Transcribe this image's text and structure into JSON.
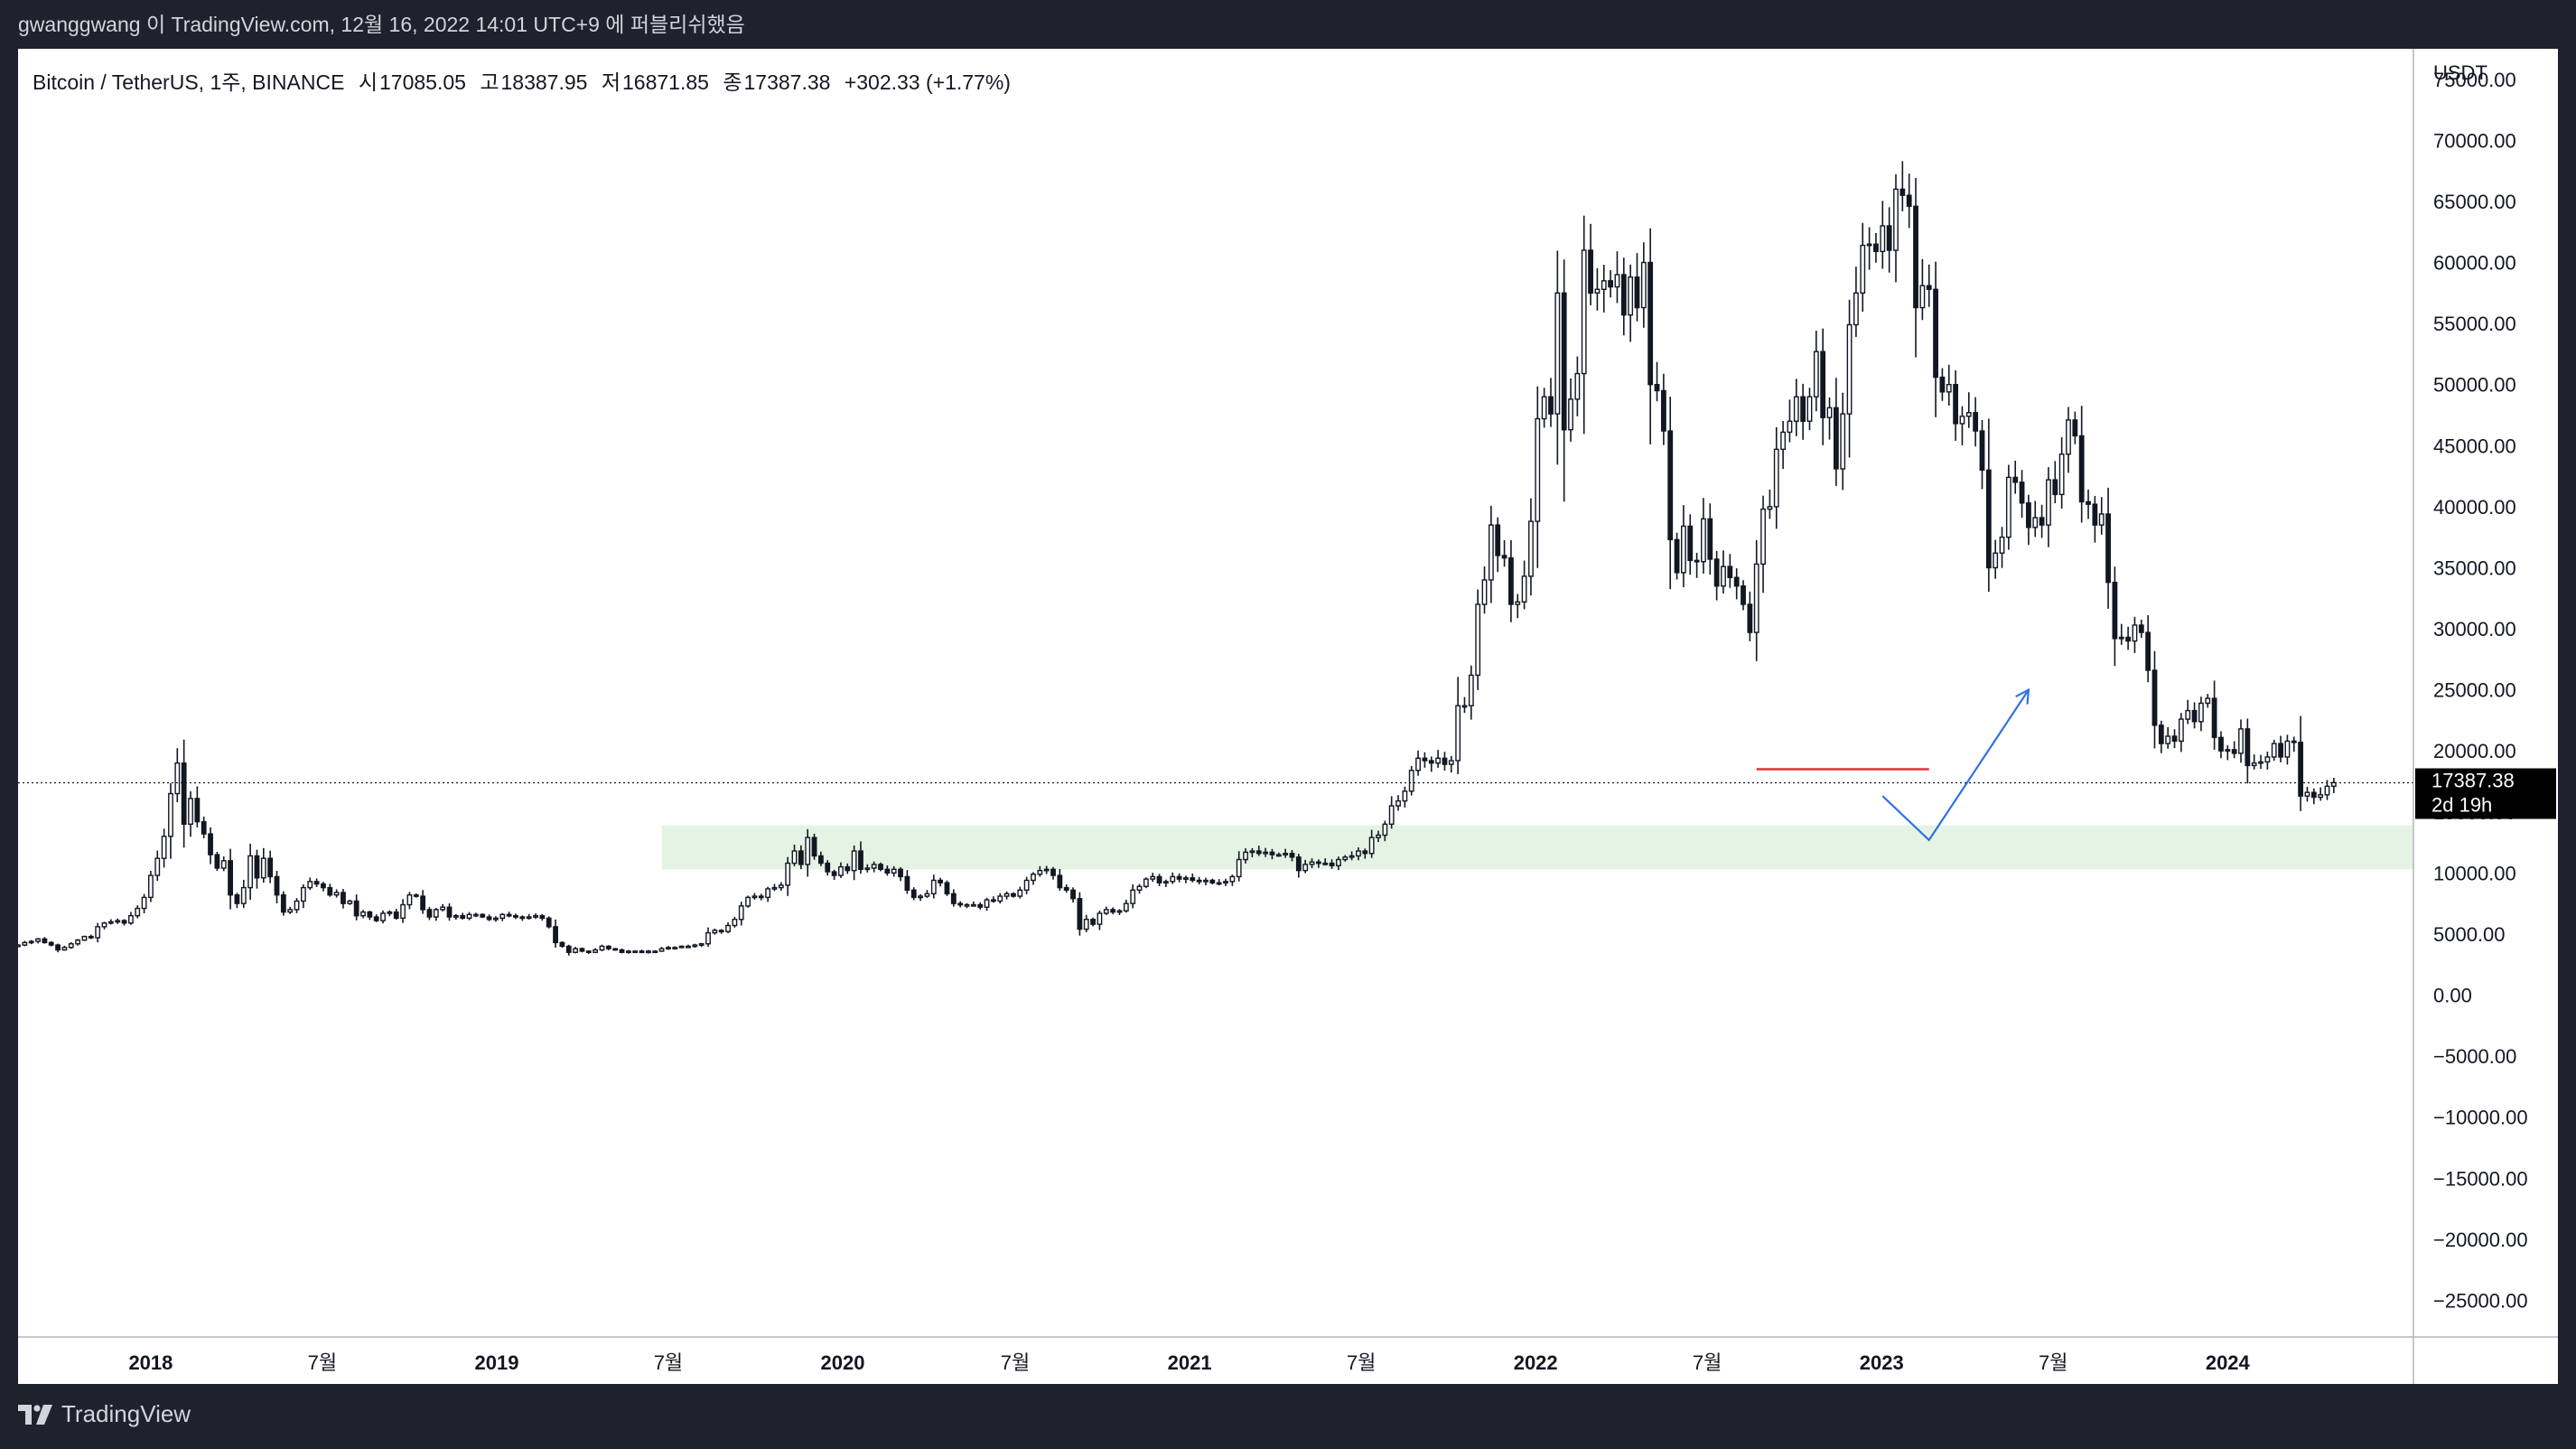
{
  "publisher_line": "gwanggwang 이 TradingView.com, 12월 16, 2022 14:01 UTC+9 에 퍼블리쉬했음",
  "legend": {
    "symbol": "Bitcoin / TetherUS, 1주, BINANCE",
    "open_label": "시",
    "open": "17085.05",
    "high_label": "고",
    "high": "18387.95",
    "low_label": "저",
    "low": "16871.85",
    "close_label": "종",
    "close": "17387.38",
    "change": "+302.33 (+1.77%)"
  },
  "price_axis": {
    "currency": "USDT",
    "last_price": "17387.38",
    "countdown": "2d 19h"
  },
  "brand": "TradingView",
  "colors": {
    "up": "#131722",
    "down": "#131722",
    "background": "#ffffff",
    "support_zone": "#e4f3e4",
    "resistance_line": "#e0323c",
    "projection": "#2f73e0"
  },
  "chart_data": {
    "type": "candlestick",
    "title": "Bitcoin / TetherUS, 1주, BINANCE",
    "ylabel": "USDT",
    "ylim": [
      -28000,
      77500
    ],
    "y_ticks": [
      75000,
      70000,
      65000,
      60000,
      55000,
      50000,
      45000,
      40000,
      35000,
      30000,
      25000,
      20000,
      15000,
      10000,
      5000,
      0,
      -5000,
      -10000,
      -15000,
      -20000,
      -25000
    ],
    "y_tick_labels": [
      "75000.00",
      "70000.00",
      "65000.00",
      "60000.00",
      "55000.00",
      "50000.00",
      "45000.00",
      "40000.00",
      "35000.00",
      "30000.00",
      "25000.00",
      "20000.00",
      "15000.00",
      "10000.00",
      "5000.00",
      "0.00",
      "−5000.00",
      "−10000.00",
      "−15000.00",
      "−20000.00",
      "−25000.00"
    ],
    "xlim": [
      "2017-08-14",
      "2024-07-15"
    ],
    "x_ticks": [
      {
        "date": "2018-01-01",
        "label": "2018",
        "bold": true
      },
      {
        "date": "2018-07-01",
        "label": "7월",
        "bold": false
      },
      {
        "date": "2019-01-01",
        "label": "2019",
        "bold": true
      },
      {
        "date": "2019-07-01",
        "label": "7월",
        "bold": false
      },
      {
        "date": "2020-01-01",
        "label": "2020",
        "bold": true
      },
      {
        "date": "2020-07-01",
        "label": "7월",
        "bold": false
      },
      {
        "date": "2021-01-01",
        "label": "2021",
        "bold": true
      },
      {
        "date": "2021-07-01",
        "label": "7월",
        "bold": false
      },
      {
        "date": "2022-01-01",
        "label": "2022",
        "bold": true
      },
      {
        "date": "2022-07-01",
        "label": "7월",
        "bold": false
      },
      {
        "date": "2023-01-01",
        "label": "2023",
        "bold": true
      },
      {
        "date": "2023-07-01",
        "label": "7월",
        "bold": false
      },
      {
        "date": "2024-01-01",
        "label": "2024",
        "bold": true
      }
    ],
    "weekly_closes": {
      "start": "2017-08-14",
      "values": [
        4100,
        4300,
        4400,
        4600,
        4300,
        4100,
        3700,
        3900,
        4200,
        4500,
        4800,
        4700,
        5600,
        5900,
        6000,
        6100,
        5900,
        6500,
        7100,
        8000,
        9800,
        11200,
        13000,
        16500,
        19000,
        14000,
        16100,
        14200,
        13200,
        11500,
        10400,
        11000,
        8200,
        7500,
        8800,
        11400,
        9600,
        11200,
        9700,
        8200,
        6800,
        7000,
        7700,
        8800,
        9300,
        9100,
        8800,
        8200,
        8400,
        7500,
        7700,
        6500,
        6800,
        6400,
        6100,
        6700,
        6800,
        6300,
        7400,
        8200,
        8100,
        7000,
        6400,
        7000,
        7200,
        6400,
        6500,
        6300,
        6600,
        6600,
        6400,
        6200,
        6300,
        6600,
        6500,
        6400,
        6300,
        6400,
        6500,
        6300,
        5600,
        4300,
        4000,
        3500,
        3800,
        3600,
        3500,
        3700,
        4000,
        3800,
        3700,
        3500,
        3600,
        3600,
        3500,
        3600,
        3600,
        3800,
        3900,
        3900,
        4000,
        4000,
        4100,
        4200,
        5100,
        5300,
        5200,
        5700,
        6200,
        7300,
        8000,
        8100,
        8000,
        8700,
        8800,
        9000,
        10800,
        11800,
        10700,
        12900,
        11400,
        10800,
        10100,
        9800,
        10500,
        10200,
        11800,
        10300,
        10400,
        10700,
        10300,
        10000,
        10300,
        9700,
        8600,
        8000,
        8100,
        8300,
        9400,
        9200,
        8300,
        7500,
        7400,
        7400,
        7400,
        7200,
        7800,
        7700,
        8100,
        8300,
        8100,
        8600,
        9400,
        9900,
        10200,
        10300,
        9800,
        8800,
        8600,
        7900,
        5400,
        6200,
        5800,
        6700,
        7000,
        6800,
        6900,
        7500,
        8600,
        8900,
        9500,
        9700,
        9200,
        9300,
        9700,
        9500,
        9600,
        9400,
        9300,
        9400,
        9200,
        9200,
        9300,
        9700,
        11100,
        11700,
        11800,
        11600,
        11700,
        11500,
        11500,
        11600,
        11300,
        10200,
        10700,
        10900,
        10800,
        10800,
        10600,
        11100,
        11300,
        11400,
        11800,
        11600,
        12900,
        13100,
        14000,
        15500,
        15900,
        16700,
        18400,
        19400,
        19200,
        19000,
        19400,
        18900,
        19200,
        23700,
        23700,
        26200,
        32000,
        34000,
        38500,
        36000,
        35800,
        32000,
        32200,
        34300,
        38800,
        47200,
        49000,
        47600,
        57500,
        46300,
        48800,
        50900,
        61000,
        57500,
        57800,
        58500,
        58000,
        59000,
        55700,
        58800,
        56300,
        60000,
        50000,
        49500,
        46200,
        37300,
        34600,
        38400,
        35600,
        35500,
        39000,
        35700,
        33500,
        35100,
        34200,
        33500,
        32000,
        29700,
        35300,
        39800,
        40000,
        44700,
        46100,
        47000,
        49000,
        47000,
        49000,
        52700,
        47300,
        48100,
        43100,
        47600,
        54900,
        57500,
        61400,
        61500,
        60900,
        63000,
        61000,
        66000,
        65500,
        64600,
        56300,
        58100,
        57800,
        50600,
        49400,
        50000,
        46800,
        47400,
        47700,
        46200,
        43000,
        35000,
        36200,
        37500,
        42400,
        42000,
        40300,
        38300,
        39100,
        38500,
        42200,
        41000,
        44300,
        47100,
        45800,
        40400,
        40200,
        38500,
        39400,
        33800,
        29200,
        29300,
        29000,
        30300,
        29700,
        26600,
        22100,
        20600,
        21200,
        20800,
        22600,
        23300,
        22400,
        23900,
        24300,
        21100,
        20000,
        20100,
        19800,
        21800,
        18800,
        19000,
        19100,
        19500,
        20600,
        19500,
        20800,
        20700,
        16300,
        16600,
        16200,
        16400,
        17100,
        17400
      ]
    },
    "annotations": {
      "support_zone": {
        "from": "2019-06-24",
        "to": "2024-07-15",
        "low": 10300,
        "high": 13900
      },
      "resistance_line": {
        "from": "2022-08-22",
        "to": "2023-02-20",
        "value": 18500
      },
      "projection_path": [
        {
          "date": "2023-01-02",
          "price": 16300
        },
        {
          "date": "2023-02-20",
          "price": 12700
        },
        {
          "date": "2023-06-05",
          "price": 25000
        }
      ],
      "last_price_line": 17387.38
    }
  }
}
